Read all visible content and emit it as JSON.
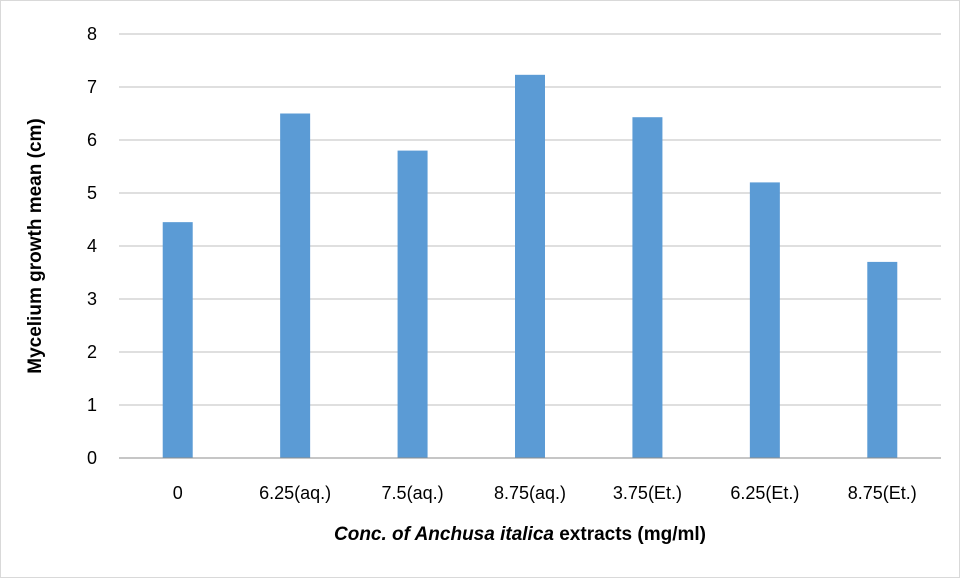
{
  "chart_data": {
    "type": "bar",
    "title": "",
    "categories": [
      "0",
      "6.25(aq.)",
      "7.5(aq.)",
      "8.75(aq.)",
      "3.75(Et.)",
      "6.25(Et.)",
      "8.75(Et.)"
    ],
    "values": [
      4.45,
      6.5,
      5.8,
      7.23,
      6.43,
      5.2,
      3.7
    ],
    "ylabel": "Mycelium growth mean (cm)",
    "xlabel_parts": {
      "lead_italic": "Conc. of Anchusa italica",
      "tail": " extracts (mg/ml)"
    },
    "ylim": [
      0,
      8
    ],
    "yticks": [
      "0",
      "1",
      "2",
      "3",
      "4",
      "5",
      "6",
      "7",
      "8"
    ],
    "grid": true,
    "legend": "none",
    "colors": {
      "bar": "#5b9bd5",
      "grid": "#bfbfbf",
      "axis": "#8c8c8c"
    }
  }
}
